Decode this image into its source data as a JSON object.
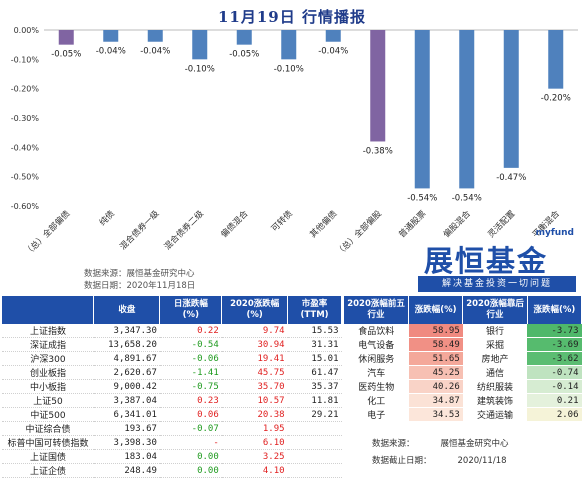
{
  "title": "11月19日 行情播报",
  "chart_data": {
    "type": "bar",
    "categories": [
      "（总）全部偏债",
      "纯债",
      "混合债券一级",
      "混合债券二级",
      "偏债混合",
      "可转债",
      "其他偏债",
      "（总）全部偏股",
      "普通股票",
      "偏股混合",
      "灵活配置",
      "平衡混合"
    ],
    "values": [
      -0.05,
      -0.04,
      -0.04,
      -0.1,
      -0.05,
      -0.1,
      -0.04,
      -0.38,
      -0.54,
      -0.54,
      -0.47,
      -0.2
    ],
    "data_labels": [
      "-0.05%",
      "-0.04%",
      "-0.04%",
      "-0.10%",
      "-0.05%",
      "-0.10%",
      "-0.04%",
      "-0.38%",
      "-0.54%",
      "-0.54%",
      "-0.47%",
      "-0.20%"
    ],
    "highlight_categories": [
      "（总）全部偏债",
      "（总）全部偏股"
    ],
    "ylim": [
      -0.6,
      0.0
    ],
    "yticks": [
      "0.00%",
      "-0.10%",
      "-0.20%",
      "-0.30%",
      "-0.40%",
      "-0.50%",
      "-0.60%"
    ],
    "ytick_values": [
      0.0,
      -0.1,
      -0.2,
      -0.3,
      -0.4,
      -0.5,
      -0.6
    ],
    "colors": {
      "normal": "#4f81bd",
      "highlight": "#8064a2"
    },
    "grid": false
  },
  "source": {
    "line1": "数据来源：展恒基金研究中心",
    "line2": "数据日期：2020年11月18日"
  },
  "brand": {
    "tag": "myfund",
    "name": "展恒基金",
    "slogan": "解决基金投资一切问题"
  },
  "index_table": {
    "headers": [
      "",
      "收盘",
      "日涨跌幅\n(%)",
      "2020涨跌幅\n(%)",
      "市盈率\n(TTM)"
    ],
    "rows": [
      {
        "name": "上证指数",
        "close": "3,347.30",
        "day": "0.22",
        "ytd": "9.74",
        "pe": "15.53",
        "day_dir": "up",
        "ytd_dir": "up"
      },
      {
        "name": "深证成指",
        "close": "13,658.20",
        "day": "-0.54",
        "ytd": "30.94",
        "pe": "31.31",
        "day_dir": "down",
        "ytd_dir": "up"
      },
      {
        "name": "沪深300",
        "close": "4,891.67",
        "day": "-0.06",
        "ytd": "19.41",
        "pe": "15.01",
        "day_dir": "down",
        "ytd_dir": "up"
      },
      {
        "name": "创业板指",
        "close": "2,620.67",
        "day": "-1.41",
        "ytd": "45.75",
        "pe": "61.47",
        "day_dir": "down",
        "ytd_dir": "up"
      },
      {
        "name": "中小板指",
        "close": "9,000.42",
        "day": "-0.75",
        "ytd": "35.70",
        "pe": "35.37",
        "day_dir": "down",
        "ytd_dir": "up"
      },
      {
        "name": "上证50",
        "close": "3,387.04",
        "day": "0.23",
        "ytd": "10.57",
        "pe": "11.81",
        "day_dir": "up",
        "ytd_dir": "up"
      },
      {
        "name": "中证500",
        "close": "6,341.01",
        "day": "0.06",
        "ytd": "20.38",
        "pe": "29.21",
        "day_dir": "up",
        "ytd_dir": "up"
      },
      {
        "name": "中证综合债",
        "close": "193.67",
        "day": "-0.07",
        "ytd": "1.95",
        "pe": "",
        "day_dir": "down",
        "ytd_dir": "up"
      },
      {
        "name": "标普中国可转债指数",
        "close": "3,398.30",
        "day": "-",
        "ytd": "6.10",
        "pe": "",
        "day_dir": "up",
        "ytd_dir": "up"
      },
      {
        "name": "上证国债",
        "close": "183.04",
        "day": "0.00",
        "ytd": "3.25",
        "pe": "",
        "day_dir": "down",
        "ytd_dir": "up"
      },
      {
        "name": "上证企债",
        "close": "248.49",
        "day": "0.00",
        "ytd": "4.10",
        "pe": "",
        "day_dir": "down",
        "ytd_dir": "up"
      }
    ]
  },
  "sector_table": {
    "headers": [
      "2020涨幅前五行业",
      "涨跌幅(%)",
      "2020涨幅靠后行业",
      "涨跌幅(%)"
    ],
    "rows": [
      {
        "top": "食品饮料",
        "top_val": "58.95",
        "top_color": "#f08a80",
        "bot": "银行",
        "bot_val": "-3.73",
        "bot_color": "#4fb86a"
      },
      {
        "top": "电气设备",
        "top_val": "58.49",
        "top_color": "#f19085",
        "bot": "采掘",
        "bot_val": "-3.69",
        "bot_color": "#56bb6e"
      },
      {
        "top": "休闲服务",
        "top_val": "51.65",
        "top_color": "#f4a89a",
        "bot": "房地产",
        "bot_val": "-3.62",
        "bot_color": "#5bbd72"
      },
      {
        "top": "汽车",
        "top_val": "45.25",
        "top_color": "#f7c0b3",
        "bot": "通信",
        "bot_val": "-0.74",
        "bot_color": "#bfe3c0"
      },
      {
        "top": "医药生物",
        "top_val": "40.26",
        "top_color": "#f9d3c7",
        "bot": "纺织服装",
        "bot_val": "-0.14",
        "bot_color": "#d6ecd2"
      },
      {
        "top": "化工",
        "top_val": "34.87",
        "top_color": "#fbe2d6",
        "bot": "建筑装饰",
        "bot_val": "0.21",
        "bot_color": "#e4f1dc"
      },
      {
        "top": "电子",
        "top_val": "34.53",
        "top_color": "#fce6da",
        "bot": "交通运输",
        "bot_val": "2.06",
        "bot_color": "#f5f3d8"
      }
    ],
    "footer": {
      "src_label": "数据来源：",
      "src_value": "展恒基金研究中心",
      "date_label": "数据截止日期：",
      "date_value": "2020/11/18"
    }
  }
}
